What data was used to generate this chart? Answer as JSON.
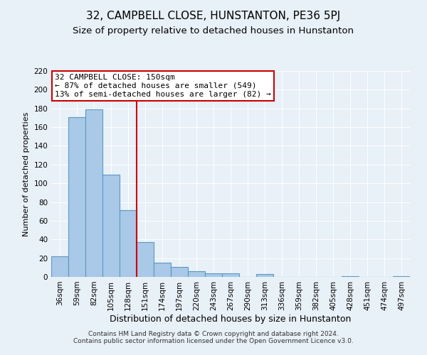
{
  "title": "32, CAMPBELL CLOSE, HUNSTANTON, PE36 5PJ",
  "subtitle": "Size of property relative to detached houses in Hunstanton",
  "xlabel": "Distribution of detached houses by size in Hunstanton",
  "ylabel": "Number of detached properties",
  "footer_line1": "Contains HM Land Registry data © Crown copyright and database right 2024.",
  "footer_line2": "Contains public sector information licensed under the Open Government Licence v3.0.",
  "bar_labels": [
    "36sqm",
    "59sqm",
    "82sqm",
    "105sqm",
    "128sqm",
    "151sqm",
    "174sqm",
    "197sqm",
    "220sqm",
    "243sqm",
    "267sqm",
    "290sqm",
    "313sqm",
    "336sqm",
    "359sqm",
    "382sqm",
    "405sqm",
    "428sqm",
    "451sqm",
    "474sqm",
    "497sqm"
  ],
  "bar_values": [
    22,
    171,
    179,
    109,
    71,
    37,
    15,
    11,
    6,
    4,
    4,
    0,
    3,
    0,
    0,
    0,
    0,
    1,
    0,
    0,
    1
  ],
  "bar_color": "#aac8e8",
  "bar_edge_color": "#5a9abe",
  "vline_x_idx": 5,
  "vline_color": "#cc0000",
  "annotation_title": "32 CAMPBELL CLOSE: 150sqm",
  "annotation_line1": "← 87% of detached houses are smaller (549)",
  "annotation_line2": "13% of semi-detached houses are larger (82) →",
  "annotation_box_color": "#ffffff",
  "annotation_box_edge": "#cc0000",
  "ylim": [
    0,
    220
  ],
  "yticks": [
    0,
    20,
    40,
    60,
    80,
    100,
    120,
    140,
    160,
    180,
    200,
    220
  ],
  "bg_color": "#e8f0f8",
  "plot_bg_color": "#e8f0f8",
  "title_fontsize": 11,
  "subtitle_fontsize": 9.5,
  "xlabel_fontsize": 9,
  "ylabel_fontsize": 8,
  "footer_fontsize": 6.5,
  "tick_fontsize": 7.5,
  "annot_fontsize": 8
}
